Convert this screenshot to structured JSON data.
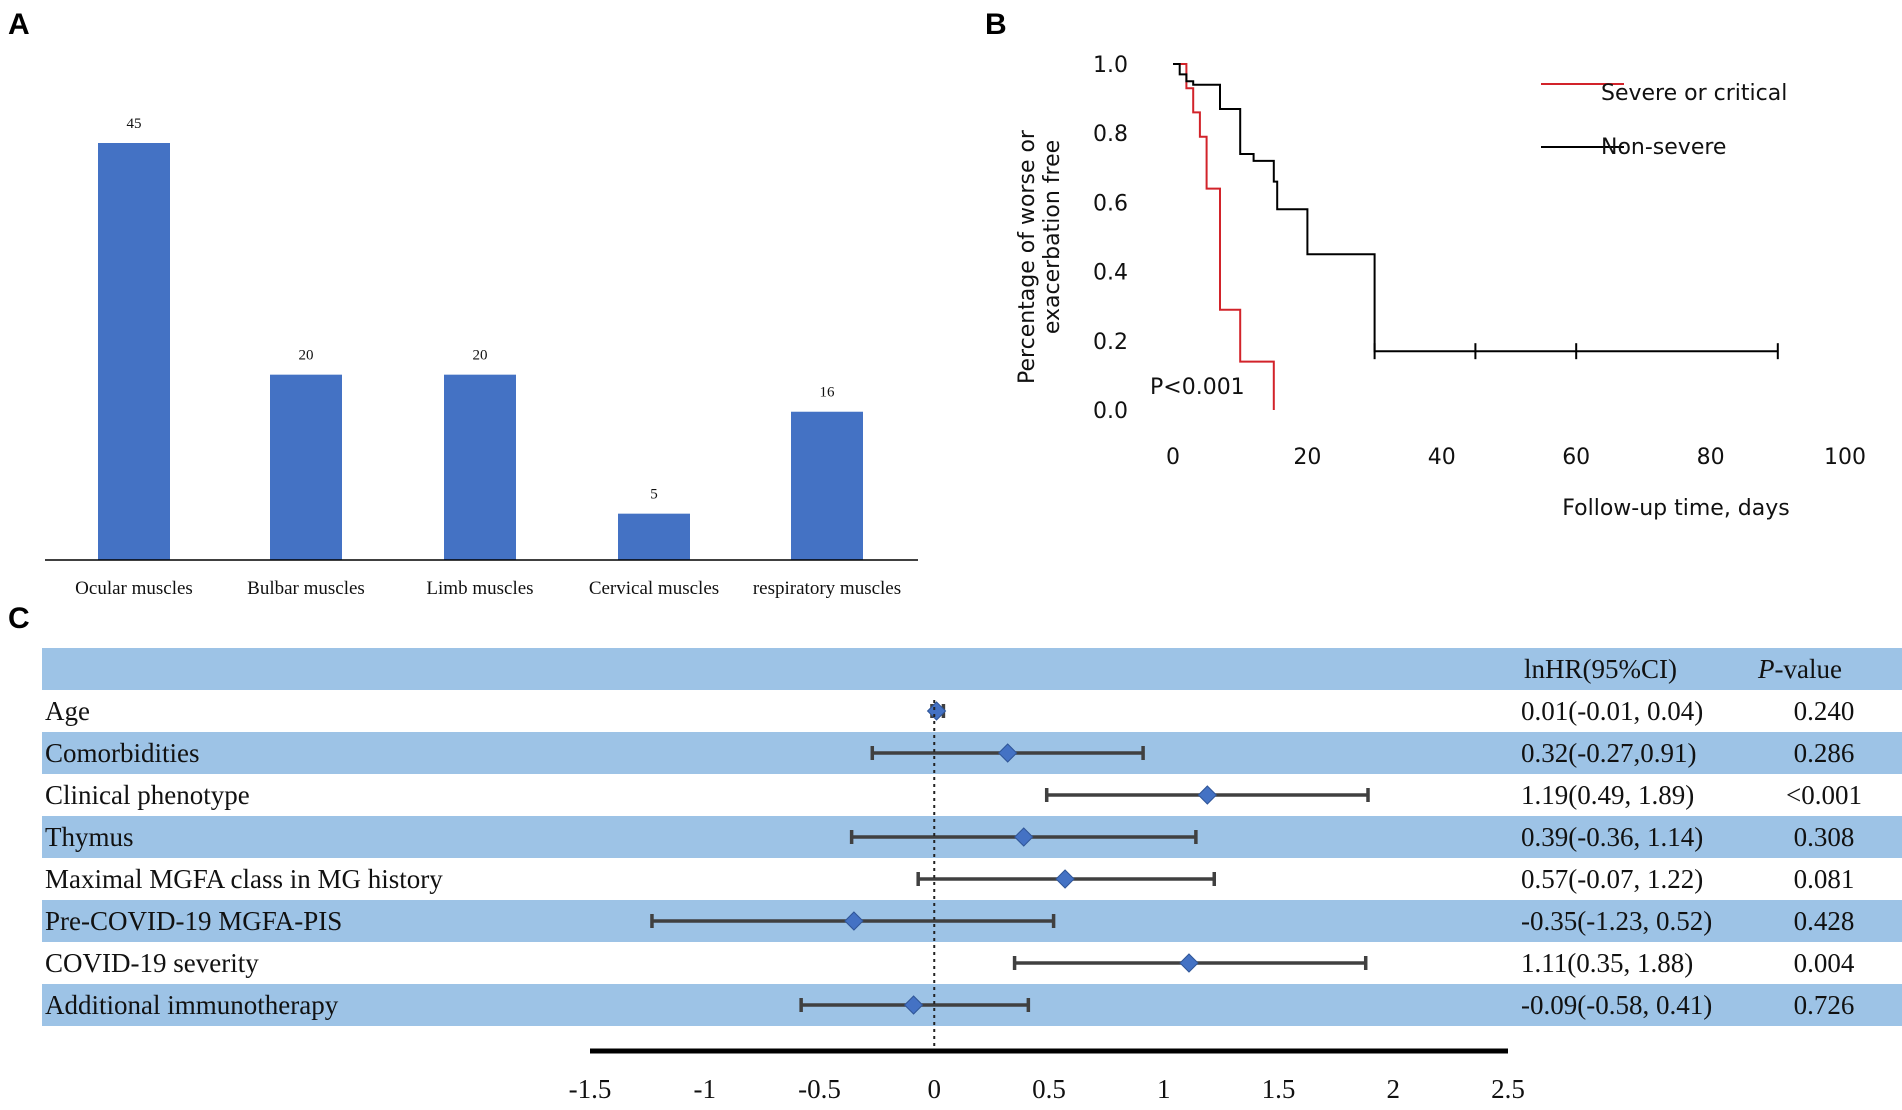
{
  "panels": {
    "a": "A",
    "b": "B",
    "c": "C"
  },
  "colors": {
    "bar": "#4472C4",
    "band": "#9DC3E6",
    "severe_line": "#D2232A",
    "nonsevere_line": "#000000",
    "forest_marker": "#4472C4",
    "forest_line": "#404040"
  },
  "chart_data": [
    {
      "id": "A",
      "type": "bar",
      "categories": [
        "Ocular muscles",
        "Bulbar muscles",
        "Limb muscles",
        "Cervical muscles",
        "respiratory muscles"
      ],
      "values": [
        45,
        20,
        20,
        5,
        16
      ],
      "value_labels": [
        "45",
        "20",
        "20",
        "5",
        "16"
      ],
      "title": "",
      "xlabel": "",
      "ylabel": "",
      "ylim": [
        0,
        50
      ],
      "grid": false
    },
    {
      "id": "B",
      "type": "line",
      "subtype": "kaplan-meier",
      "xlabel": "Follow-up time, days",
      "ylabel_lines": [
        "Percentage of worse or",
        "exacerbation free"
      ],
      "xlim": [
        0,
        100
      ],
      "ylim": [
        0,
        1
      ],
      "xticks": [
        0,
        20,
        40,
        60,
        80,
        100
      ],
      "xtick_labels": [
        "0",
        "20",
        "40",
        "60",
        "80",
        "100"
      ],
      "yticks": [
        0,
        0.2,
        0.4,
        0.6,
        0.8,
        1
      ],
      "ytick_labels": [
        "0.0",
        "0.2",
        "0.4",
        "0.6",
        "0.8",
        "1.0"
      ],
      "annotation": "P<0.001",
      "legend_position": "top-right",
      "series": [
        {
          "name": "Severe or critical",
          "color": "#D2232A",
          "steps": [
            [
              0,
              1
            ],
            [
              2,
              1
            ],
            [
              2,
              0.93
            ],
            [
              3,
              0.93
            ],
            [
              3,
              0.86
            ],
            [
              4,
              0.86
            ],
            [
              4,
              0.79
            ],
            [
              5,
              0.79
            ],
            [
              5,
              0.64
            ],
            [
              7,
              0.64
            ],
            [
              7,
              0.29
            ],
            [
              10,
              0.29
            ],
            [
              10,
              0.14
            ],
            [
              15,
              0.14
            ],
            [
              15,
              0
            ]
          ],
          "censored": []
        },
        {
          "name": "Non-severe",
          "color": "#000000",
          "steps": [
            [
              0,
              1
            ],
            [
              1,
              1
            ],
            [
              1,
              0.97
            ],
            [
              2,
              0.97
            ],
            [
              2,
              0.95
            ],
            [
              3,
              0.95
            ],
            [
              3,
              0.94
            ],
            [
              7,
              0.94
            ],
            [
              7,
              0.87
            ],
            [
              10,
              0.87
            ],
            [
              10,
              0.74
            ],
            [
              12,
              0.74
            ],
            [
              12,
              0.72
            ],
            [
              15,
              0.72
            ],
            [
              15,
              0.66
            ],
            [
              15.5,
              0.66
            ],
            [
              15.5,
              0.58
            ],
            [
              20,
              0.58
            ],
            [
              20,
              0.45
            ],
            [
              30,
              0.45
            ],
            [
              30,
              0.17
            ],
            [
              90,
              0.17
            ]
          ],
          "censored": [
            [
              30,
              0.17
            ],
            [
              45,
              0.17
            ],
            [
              60,
              0.17
            ],
            [
              90,
              0.17
            ]
          ]
        }
      ]
    },
    {
      "id": "C",
      "type": "forest",
      "header": {
        "hr": "lnHR(95%CI)",
        "p_italic": "P",
        "p_rest": "-value"
      },
      "xlim": [
        -1.5,
        2.5
      ],
      "xticks": [
        -1.5,
        -1,
        -0.5,
        0,
        0.5,
        1,
        1.5,
        2,
        2.5
      ],
      "xtick_labels": [
        "-1.5",
        "-1",
        "-0.5",
        "0",
        "0.5",
        "1",
        "1.5",
        "2",
        "2.5"
      ],
      "reference_line": 0,
      "rows": [
        {
          "label": "Age",
          "est": 0.01,
          "lo": -0.01,
          "hi": 0.04,
          "hr_text": "0.01(-0.01, 0.04)",
          "p": "0.240"
        },
        {
          "label": "Comorbidities",
          "est": 0.32,
          "lo": -0.27,
          "hi": 0.91,
          "hr_text": "0.32(-0.27,0.91)",
          "p": "0.286"
        },
        {
          "label": "Clinical phenotype",
          "est": 1.19,
          "lo": 0.49,
          "hi": 1.89,
          "hr_text": "1.19(0.49, 1.89)",
          "p": "<0.001"
        },
        {
          "label": "Thymus",
          "est": 0.39,
          "lo": -0.36,
          "hi": 1.14,
          "hr_text": "0.39(-0.36, 1.14)",
          "p": "0.308"
        },
        {
          "label": "Maximal MGFA class in MG history",
          "est": 0.57,
          "lo": -0.07,
          "hi": 1.22,
          "hr_text": "0.57(-0.07, 1.22)",
          "p": "0.081"
        },
        {
          "label": "Pre-COVID-19 MGFA-PIS",
          "est": -0.35,
          "lo": -1.23,
          "hi": 0.52,
          "hr_text": "-0.35(-1.23, 0.52)",
          "p": "0.428"
        },
        {
          "label": "COVID-19 severity",
          "est": 1.11,
          "lo": 0.35,
          "hi": 1.88,
          "hr_text": "1.11(0.35, 1.88)",
          "p": "0.004"
        },
        {
          "label": "Additional immunotherapy",
          "est": -0.09,
          "lo": -0.58,
          "hi": 0.41,
          "hr_text": "-0.09(-0.58, 0.41)",
          "p": "0.726"
        }
      ]
    }
  ]
}
